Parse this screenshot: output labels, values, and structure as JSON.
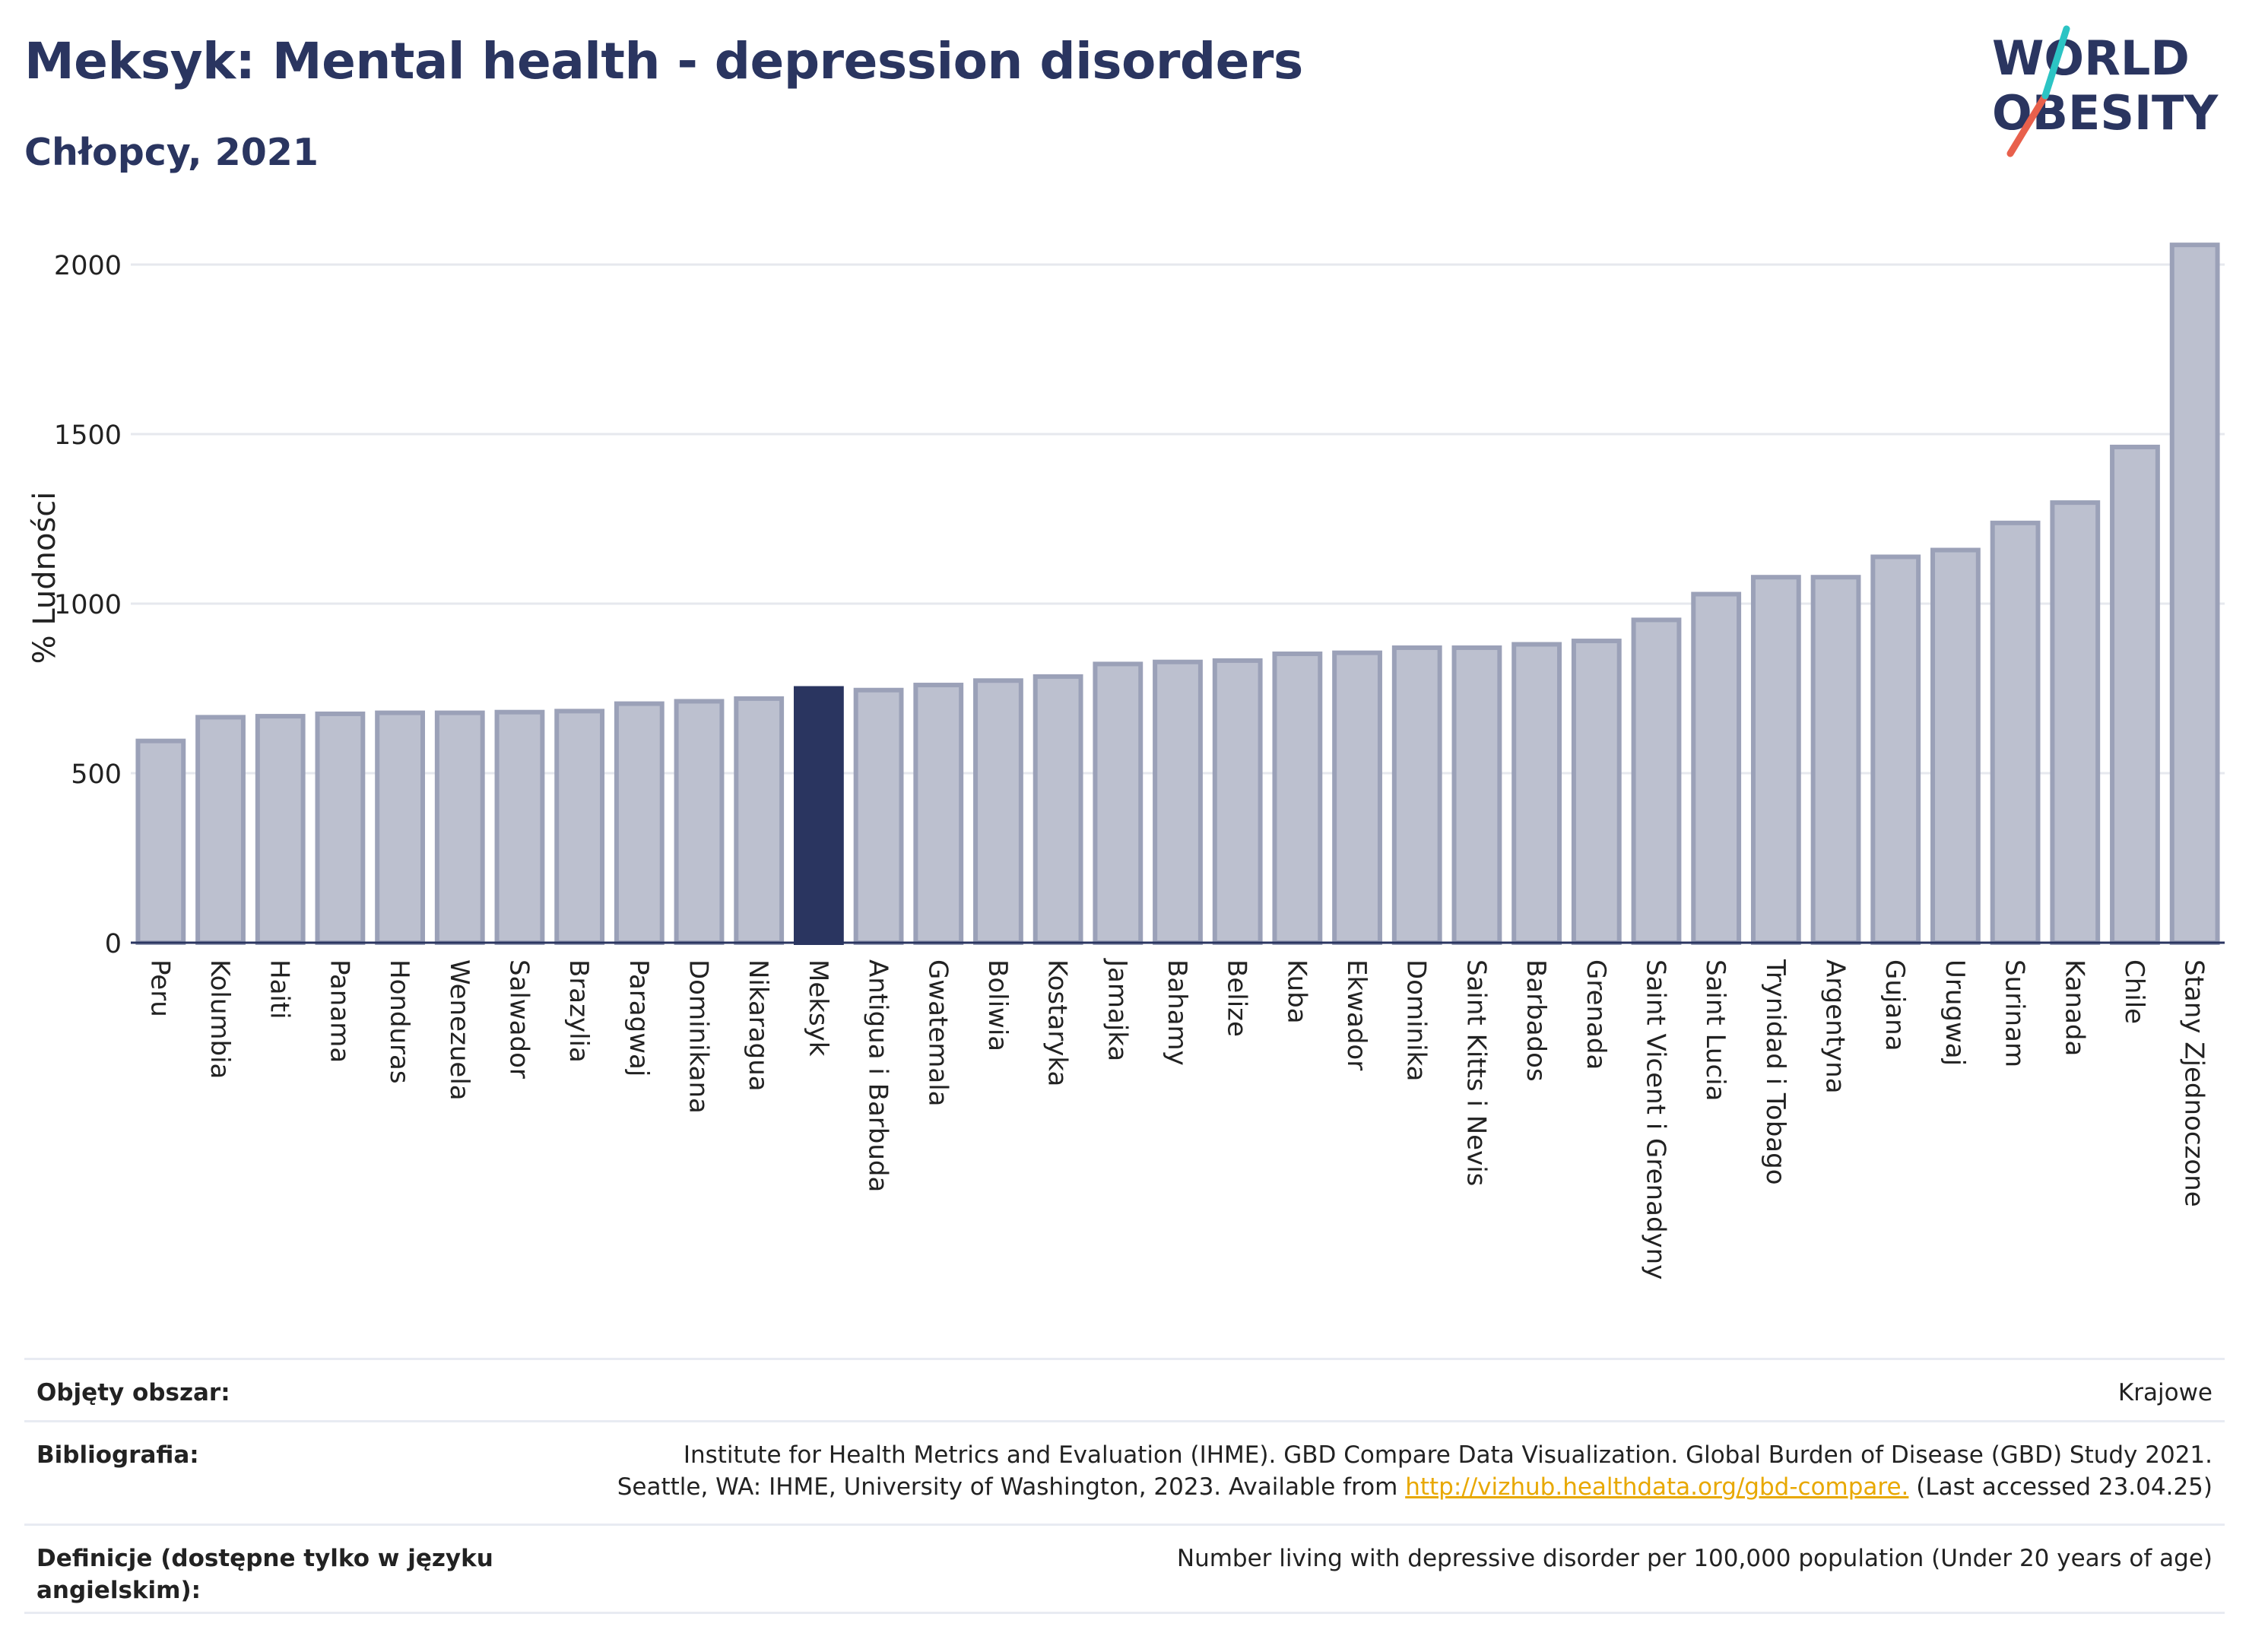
{
  "header": {
    "title": "Meksyk: Mental health - depression disorders",
    "subtitle": "Chłopcy, 2021"
  },
  "logo": {
    "line1": "WORLD",
    "line2": "OBESITY",
    "colors": {
      "text": "#2a3560",
      "slash_red": "#e8604c",
      "slash_teal": "#2cc4c4"
    }
  },
  "chart_data": {
    "type": "bar",
    "ylabel": "% Ludności",
    "ylim": [
      0,
      2100
    ],
    "yticks": [
      0,
      500,
      1000,
      1500,
      2000
    ],
    "grid": true,
    "highlight": "Meksyk",
    "colors": {
      "bar": "#bcc0cf",
      "bar_edge": "#9ba1b8",
      "highlight": "#2a3560",
      "axis": "#2a3560",
      "grid": "#e6e8ee"
    },
    "categories": [
      "Peru",
      "Kolumbia",
      "Haiti",
      "Panama",
      "Honduras",
      "Wenezuela",
      "Salwador",
      "Brazylia",
      "Paragwaj",
      "Dominikana",
      "Nikaragua",
      "Meksyk",
      "Antigua i Barbuda",
      "Gwatemala",
      "Boliwia",
      "Kostaryka",
      "Jamajka",
      "Bahamy",
      "Belize",
      "Kuba",
      "Ekwador",
      "Dominika",
      "Saint Kitts i Nevis",
      "Barbados",
      "Grenada",
      "Saint Vicent i Grenadyny",
      "Saint Lucia",
      "Trynidad i Tobago",
      "Argentyna",
      "Gujana",
      "Urugwaj",
      "Surinam",
      "Kanada",
      "Chile",
      "Stany Zjednoczone"
    ],
    "values": [
      595,
      665,
      668,
      675,
      678,
      678,
      680,
      683,
      705,
      712,
      720,
      750,
      745,
      760,
      773,
      785,
      822,
      828,
      832,
      852,
      855,
      870,
      870,
      880,
      890,
      952,
      1028,
      1078,
      1078,
      1138,
      1158,
      1238,
      1298,
      1462,
      2058
    ]
  },
  "meta": {
    "rows": [
      {
        "label": "Objęty obszar:",
        "value_lines": [
          "Krajowe"
        ]
      },
      {
        "label": "Bibliografia:",
        "value_lines": [
          "Institute for Health Metrics and Evaluation (IHME). GBD Compare Data Visualization. Global Burden of Disease (GBD) Study 2021.",
          "Seattle, WA: IHME, University of Washington, 2023. Available from "
        ],
        "link": "http://vizhub.healthdata.org/gbd-compare.",
        "after_link": " (Last accessed 23.04.25)"
      },
      {
        "label_lines": [
          "Definicje (dostępne tylko w języku",
          "angielskim):"
        ],
        "value_lines": [
          "Number living with depressive disorder per 100,000 population (Under 20 years of age)"
        ]
      }
    ]
  }
}
